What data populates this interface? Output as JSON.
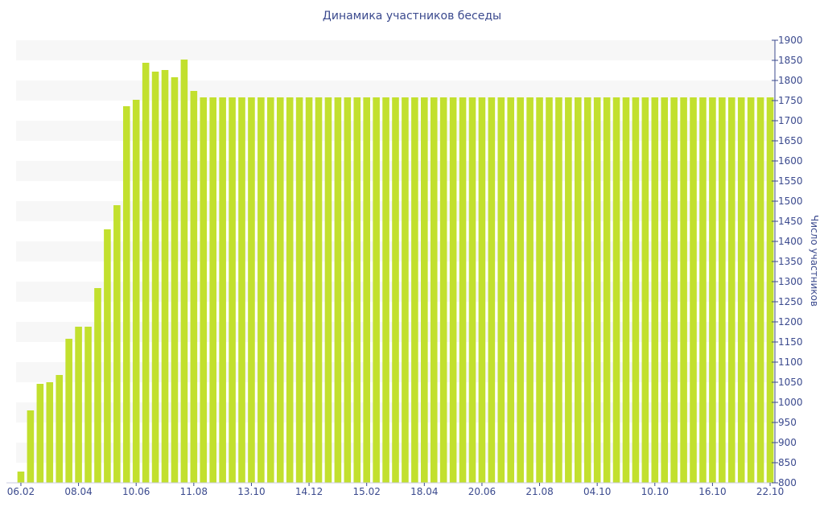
{
  "chart_data": {
    "type": "bar",
    "title": "Динамика участников беседы",
    "xlabel": "",
    "ylabel": "Число участников",
    "ylim": [
      800,
      1900
    ],
    "y_ticks": [
      800,
      850,
      900,
      950,
      1000,
      1050,
      1100,
      1150,
      1200,
      1250,
      1300,
      1350,
      1400,
      1450,
      1500,
      1550,
      1600,
      1650,
      1700,
      1750,
      1800,
      1850,
      1900
    ],
    "x_tick_labels": [
      {
        "index": 0,
        "label": "06.02"
      },
      {
        "index": 6,
        "label": "08.04"
      },
      {
        "index": 12,
        "label": "10.06"
      },
      {
        "index": 18,
        "label": "11.08"
      },
      {
        "index": 24,
        "label": "13.10"
      },
      {
        "index": 30,
        "label": "14.12"
      },
      {
        "index": 36,
        "label": "15.02"
      },
      {
        "index": 42,
        "label": "18.04"
      },
      {
        "index": 48,
        "label": "20.06"
      },
      {
        "index": 54,
        "label": "21.08"
      },
      {
        "index": 60,
        "label": "04.10"
      },
      {
        "index": 66,
        "label": "10.10"
      },
      {
        "index": 72,
        "label": "16.10"
      },
      {
        "index": 78,
        "label": "22.10"
      }
    ],
    "values": [
      828,
      980,
      1046,
      1050,
      1068,
      1158,
      1188,
      1188,
      1284,
      1430,
      1490,
      1736,
      1752,
      1844,
      1822,
      1826,
      1808,
      1852,
      1774,
      1758,
      1758,
      1758,
      1758,
      1758,
      1758,
      1758,
      1758,
      1758,
      1758,
      1758,
      1758,
      1758,
      1758,
      1758,
      1758,
      1758,
      1758,
      1758,
      1758,
      1758,
      1758,
      1758,
      1758,
      1758,
      1758,
      1758,
      1758,
      1758,
      1758,
      1758,
      1758,
      1758,
      1758,
      1758,
      1758,
      1758,
      1758,
      1758,
      1758,
      1758,
      1758,
      1758,
      1758,
      1758,
      1758,
      1758,
      1758,
      1758,
      1758,
      1758,
      1758,
      1758,
      1758,
      1758,
      1758,
      1758,
      1758,
      1758,
      1758
    ],
    "bar_color": "#c2e02e",
    "band_color": "#f7f7f7",
    "axis_color": "#3b4a8e",
    "grid": "alternating horizontal bands",
    "y_axis_side": "right"
  }
}
